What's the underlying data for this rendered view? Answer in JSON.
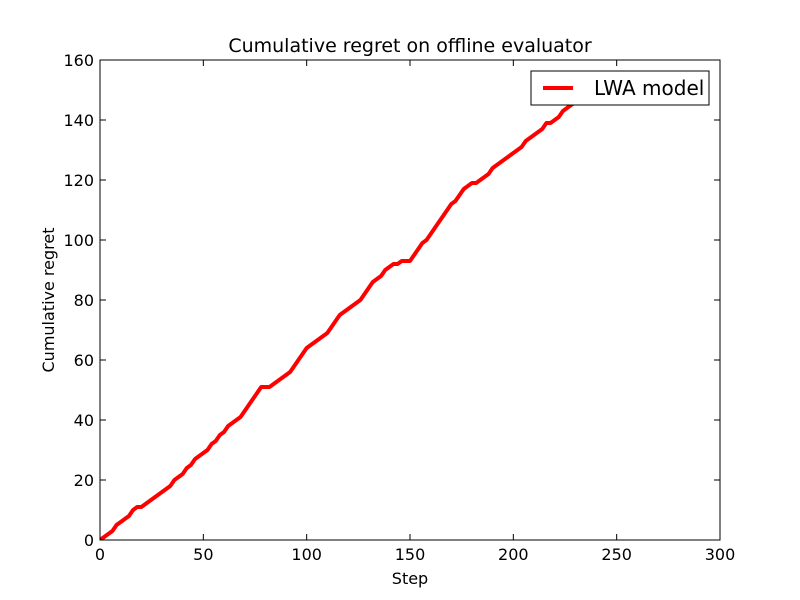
{
  "chart_data": {
    "type": "line",
    "title": "Cumulative regret on offline evaluator",
    "xlabel": "Step",
    "ylabel": "Cumulative regret",
    "xlim": [
      0,
      300
    ],
    "ylim": [
      0,
      160
    ],
    "xticks": [
      "0",
      "50",
      "100",
      "150",
      "200",
      "250",
      "300"
    ],
    "yticks": [
      "0",
      "20",
      "40",
      "60",
      "80",
      "100",
      "120",
      "140",
      "160"
    ],
    "grid": false,
    "legend_position": "top-right",
    "series": [
      {
        "name": "LWA model",
        "color": "#ff0000",
        "x": [
          0,
          2,
          4,
          6,
          8,
          10,
          12,
          14,
          16,
          18,
          20,
          22,
          24,
          26,
          28,
          30,
          32,
          34,
          36,
          38,
          40,
          42,
          44,
          46,
          48,
          50,
          52,
          54,
          56,
          58,
          60,
          62,
          64,
          66,
          68,
          70,
          72,
          74,
          76,
          78,
          80,
          82,
          84,
          86,
          88,
          90,
          92,
          94,
          96,
          98,
          100,
          102,
          104,
          106,
          108,
          110,
          112,
          114,
          116,
          118,
          120,
          122,
          124,
          126,
          128,
          130,
          132,
          134,
          136,
          138,
          140,
          142,
          144,
          146,
          148,
          150,
          152,
          154,
          156,
          158,
          160,
          162,
          164,
          166,
          168,
          170,
          172,
          174,
          176,
          178,
          180,
          182,
          184,
          186,
          188,
          190,
          192,
          194,
          196,
          198,
          200,
          202,
          204,
          206,
          208,
          210,
          212,
          214,
          216,
          218,
          220,
          222,
          224,
          226,
          228,
          230,
          232,
          234,
          236,
          238,
          240,
          242,
          244
        ],
        "y": [
          0,
          1,
          2,
          3,
          5,
          6,
          7,
          8,
          10,
          11,
          11,
          12,
          13,
          14,
          15,
          16,
          17,
          18,
          20,
          21,
          22,
          24,
          25,
          27,
          28,
          29,
          30,
          32,
          33,
          35,
          36,
          38,
          39,
          40,
          41,
          43,
          45,
          47,
          49,
          51,
          51,
          51,
          52,
          53,
          54,
          55,
          56,
          58,
          60,
          62,
          64,
          65,
          66,
          67,
          68,
          69,
          71,
          73,
          75,
          76,
          77,
          78,
          79,
          80,
          82,
          84,
          86,
          87,
          88,
          90,
          91,
          92,
          92,
          93,
          93,
          93,
          95,
          97,
          99,
          100,
          102,
          104,
          106,
          108,
          110,
          112,
          113,
          115,
          117,
          118,
          119,
          119,
          120,
          121,
          122,
          124,
          125,
          126,
          127,
          128,
          129,
          130,
          131,
          133,
          134,
          135,
          136,
          137,
          139,
          139,
          140,
          141,
          143,
          144,
          145,
          146,
          147,
          148,
          149,
          150,
          151,
          152,
          153
        ]
      }
    ]
  }
}
